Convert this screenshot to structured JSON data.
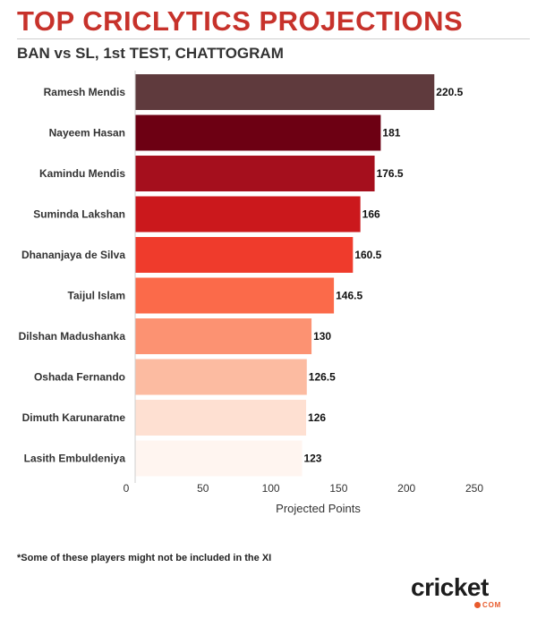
{
  "header": {
    "title": "TOP CRICLYTICS PROJECTIONS",
    "subtitle": "BAN vs SL, 1st TEST, CHATTOGRAM"
  },
  "footnote": "*Some of these players might not be included in the XI",
  "logo": {
    "main": "cricket",
    "sub": "COM"
  },
  "colors": [
    "#5f3a3d",
    "#6d0013",
    "#a50f1d",
    "#cb181c",
    "#ef3b2c",
    "#fb6a4a",
    "#fc9272",
    "#fcbba1",
    "#fee0d2",
    "#fff5f0"
  ],
  "chart_data": {
    "type": "bar",
    "orientation": "horizontal",
    "categories": [
      "Ramesh Mendis",
      "Nayeem Hasan",
      "Kamindu Mendis",
      "Suminda Lakshan",
      "Dhananjaya de Silva",
      "Taijul Islam",
      "Dilshan Madushanka",
      "Oshada Fernando",
      "Dimuth Karunaratne",
      "Lasith Embuldeniya"
    ],
    "values": [
      220.5,
      181,
      176.5,
      166,
      160.5,
      146.5,
      130,
      126.5,
      126,
      123
    ],
    "value_labels": [
      "220.5",
      "181",
      "176.5",
      "166",
      "160.5",
      "146.5",
      "130",
      "126.5",
      "126",
      "123"
    ],
    "xlabel": "Projected Points",
    "ylabel": "",
    "xlim": [
      0,
      250
    ],
    "x_ticks": [
      "0",
      "50",
      "100",
      "150",
      "200",
      "250"
    ],
    "grid": false,
    "legend": "none"
  }
}
